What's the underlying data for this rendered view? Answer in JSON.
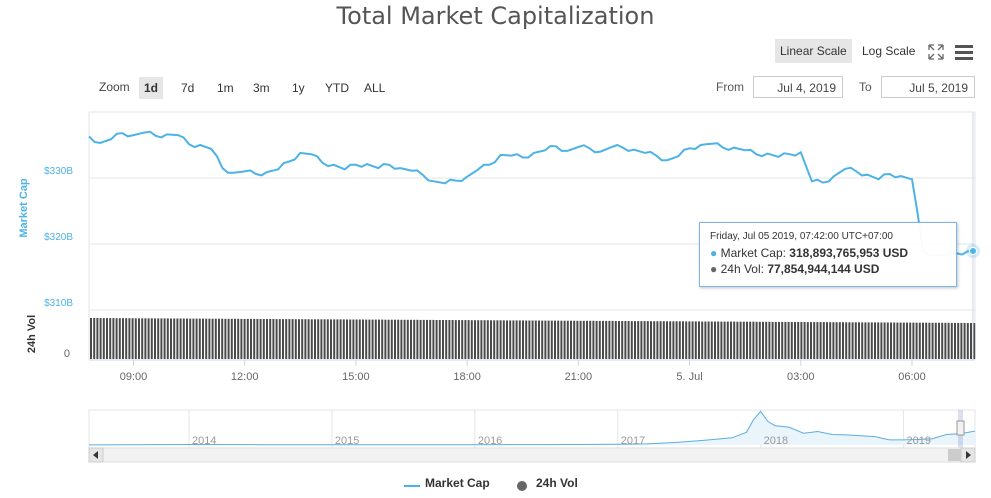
{
  "title": "Total Market Capitalization",
  "scale_buttons": {
    "linear": "Linear Scale",
    "log": "Log Scale"
  },
  "zoom": {
    "label": "Zoom",
    "buttons": [
      "1d",
      "7d",
      "1m",
      "3m",
      "1y",
      "YTD",
      "ALL"
    ],
    "active": "1d"
  },
  "range": {
    "from_label": "From",
    "from_value": "Jul 4, 2019",
    "to_label": "To",
    "to_value": "Jul 5, 2019"
  },
  "tooltip": {
    "date": "Friday, Jul 05 2019, 07:42:00 UTC+07:00",
    "mcap_label": "Market Cap:",
    "mcap_value": "318,893,765,953 USD",
    "vol_label": "24h Vol:",
    "vol_value": "77,854,944,144 USD"
  },
  "legend": {
    "mcap": "Market Cap",
    "vol": "24h Vol"
  },
  "colors": {
    "market_cap": "#4db3e6",
    "volume": "#333333",
    "navigator": "#5aaee0"
  },
  "chart_data": {
    "type": "line",
    "title": "Total Market Capitalization",
    "y_axis": {
      "label": "Market Cap",
      "ticks": [
        "$310B",
        "$320B",
        "$330B"
      ],
      "tick_values": [
        310,
        320,
        330
      ],
      "units": "USD billions"
    },
    "y2_axis": {
      "label": "24h Vol",
      "ticks": [
        "0"
      ]
    },
    "x_ticks": [
      "09:00",
      "12:00",
      "15:00",
      "18:00",
      "21:00",
      "5. Jul",
      "03:00",
      "06:00"
    ],
    "x_tick_hours": [
      9,
      12,
      15,
      18,
      21,
      24,
      27,
      30
    ],
    "x_range_hours": [
      7.8,
      31.7
    ],
    "series": [
      {
        "name": "Market Cap",
        "x_hours": [
          7.8,
          8.1,
          8.4,
          8.7,
          9.0,
          9.3,
          9.6,
          9.9,
          10.2,
          10.5,
          10.8,
          11.1,
          11.4,
          11.7,
          12.0,
          12.3,
          12.6,
          12.9,
          13.2,
          13.5,
          13.8,
          14.1,
          14.4,
          14.7,
          15.0,
          15.3,
          15.6,
          15.9,
          16.2,
          16.5,
          16.8,
          17.1,
          17.4,
          17.7,
          18.0,
          18.3,
          18.6,
          18.9,
          19.2,
          19.5,
          19.8,
          20.1,
          20.4,
          20.7,
          21.0,
          21.3,
          21.6,
          21.9,
          22.2,
          22.5,
          22.8,
          23.1,
          23.4,
          23.7,
          24.0,
          24.3,
          24.6,
          24.9,
          25.2,
          25.5,
          25.8,
          26.1,
          26.4,
          26.7,
          27.0,
          27.3,
          27.6,
          27.9,
          28.2,
          28.5,
          28.8,
          29.1,
          29.4,
          29.7,
          30.0,
          30.3,
          30.6,
          30.9,
          31.2,
          31.5,
          31.7
        ],
        "values": [
          336.3,
          335.3,
          335.9,
          336.8,
          336.5,
          336.9,
          336.4,
          336.6,
          336.5,
          335.1,
          335.0,
          334.4,
          331.5,
          330.8,
          331.0,
          330.6,
          330.9,
          331.3,
          332.5,
          333.8,
          333.6,
          332.3,
          332.0,
          331.3,
          332.0,
          332.1,
          331.5,
          332.0,
          331.5,
          331.1,
          330.5,
          329.5,
          329.2,
          329.6,
          330.2,
          331.3,
          332.0,
          333.5,
          333.4,
          333.1,
          333.8,
          334.2,
          334.8,
          334.1,
          334.7,
          334.5,
          334.0,
          334.7,
          334.6,
          334.3,
          333.8,
          333.4,
          332.7,
          333.3,
          334.5,
          335.0,
          335.2,
          334.6,
          334.6,
          334.2,
          333.6,
          333.7,
          333.2,
          333.6,
          333.9,
          329.5,
          329.3,
          330.3,
          331.4,
          331.0,
          330.5,
          329.8,
          330.6,
          330.3,
          329.8,
          319.0,
          318.3,
          318.4,
          318.6,
          318.9,
          318.9
        ]
      },
      {
        "name": "24h Vol",
        "values_usd_billions_approx": 78
      }
    ],
    "navigator": {
      "x_labels": [
        "2014",
        "2015",
        "2016",
        "2017",
        "2018",
        "2019"
      ],
      "x_years": [
        2014,
        2015,
        2016,
        2017,
        2018,
        2019
      ],
      "x_range_years": [
        2013.3,
        2019.5
      ],
      "y_range_billions": [
        0,
        830
      ],
      "years": [
        2013.3,
        2013.8,
        2014.0,
        2014.5,
        2015.0,
        2015.5,
        2016.0,
        2016.5,
        2017.0,
        2017.2,
        2017.4,
        2017.6,
        2017.8,
        2017.9,
        2017.95,
        2018.0,
        2018.05,
        2018.1,
        2018.2,
        2018.3,
        2018.4,
        2018.5,
        2018.6,
        2018.7,
        2018.8,
        2018.9,
        2019.0,
        2019.1,
        2019.2,
        2019.3,
        2019.4,
        2019.5
      ],
      "values_billions": [
        1.5,
        10,
        12,
        8,
        6,
        4,
        7,
        10,
        18,
        25,
        60,
        110,
        170,
        300,
        600,
        800,
        560,
        460,
        420,
        280,
        320,
        250,
        240,
        220,
        200,
        120,
        120,
        130,
        150,
        250,
        270,
        330
      ]
    }
  }
}
